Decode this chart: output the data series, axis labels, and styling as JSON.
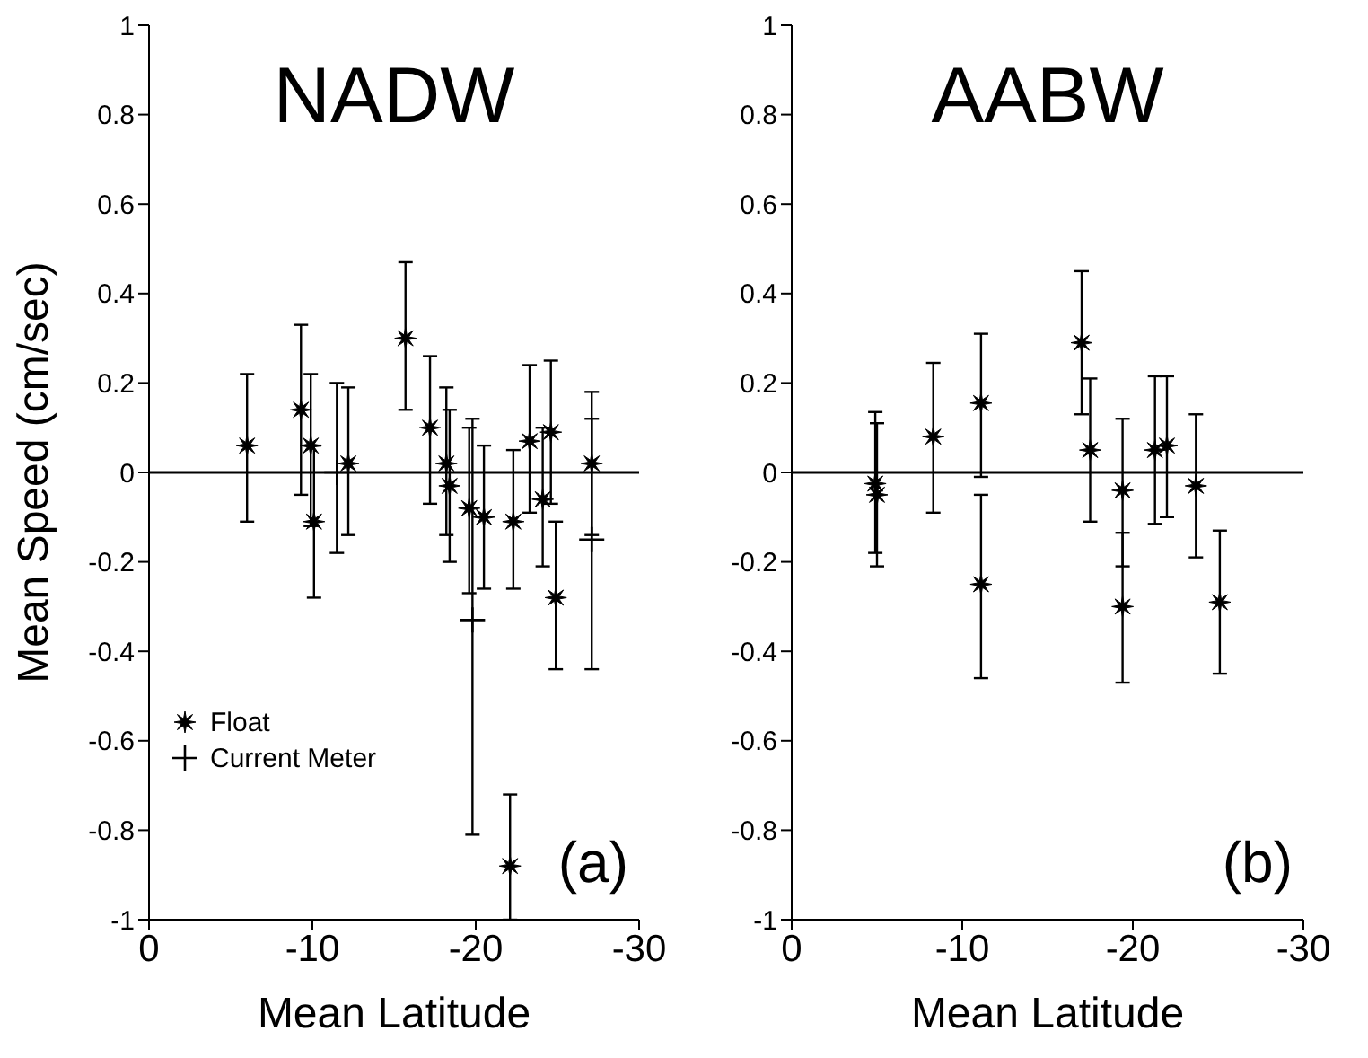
{
  "chart_data": [
    {
      "type": "scatter",
      "title": "NADW",
      "xlabel": "Mean Latitude",
      "ylabel": "Mean Speed (cm/sec)",
      "annotations": [
        "(a)"
      ],
      "xlim": [
        0,
        -30
      ],
      "xticks": [
        0,
        -10,
        -20,
        -30
      ],
      "ylim": [
        -1,
        1
      ],
      "yticks": [
        -1,
        -0.8,
        -0.6,
        -0.4,
        -0.2,
        0,
        0.2,
        0.4,
        0.6,
        0.8,
        1
      ],
      "ref_lines": [
        {
          "axis": "y",
          "value": 0
        }
      ],
      "legend": "bottom left",
      "grid": false,
      "series": [
        {
          "name": "Float",
          "color": "#000000",
          "marker": "star",
          "x": [
            -6,
            -9.3,
            -9.9,
            -10.1,
            -12.2,
            -15.7,
            -17.2,
            -18.2,
            -18.4,
            -19.6,
            -20.5,
            -22.3,
            -23.3,
            -24.1,
            -24.6,
            -24.9,
            -27.1,
            -22.1
          ],
          "values": [
            0.06,
            0.14,
            0.06,
            -0.11,
            0.02,
            0.3,
            0.1,
            0.02,
            -0.03,
            -0.08,
            -0.1,
            -0.11,
            0.07,
            -0.06,
            0.09,
            -0.28,
            0.02,
            -0.88
          ],
          "errors": [
            [
              -0.11,
              0.22
            ],
            [
              -0.05,
              0.33
            ],
            [
              -0.12,
              0.22
            ],
            [
              -0.28,
              0.06
            ],
            [
              -0.14,
              0.19
            ],
            [
              0.14,
              0.47
            ],
            [
              -0.07,
              0.26
            ],
            [
              -0.14,
              0.19
            ],
            [
              -0.2,
              0.14
            ],
            [
              -0.27,
              0.1
            ],
            [
              -0.26,
              0.06
            ],
            [
              -0.26,
              0.05
            ],
            [
              -0.09,
              0.24
            ],
            [
              -0.21,
              0.1
            ],
            [
              -0.07,
              0.25
            ],
            [
              -0.44,
              -0.11
            ],
            [
              -0.14,
              0.18
            ],
            [
              -1,
              -0.72
            ]
          ]
        },
        {
          "name": "Current Meter",
          "color": "#000000",
          "marker": "cross",
          "x": [
            -11.5,
            -19.8,
            -27.1
          ],
          "values": [
            0,
            -0.33,
            -0.15
          ],
          "errors": [
            [
              -0.18,
              0.2
            ],
            [
              -0.81,
              0.12
            ],
            [
              -0.44,
              0.12
            ]
          ]
        }
      ]
    },
    {
      "type": "scatter",
      "title": "AABW",
      "xlabel": "Mean Latitude",
      "annotations": [
        "(b)"
      ],
      "xlim": [
        0,
        -30
      ],
      "xticks": [
        0,
        -10,
        -20,
        -30
      ],
      "ylim": [
        -1,
        1
      ],
      "yticks": [
        -1,
        -0.8,
        -0.6,
        -0.4,
        -0.2,
        0,
        0.2,
        0.4,
        0.6,
        0.8,
        1
      ],
      "ref_lines": [
        {
          "axis": "y",
          "value": 0
        }
      ],
      "legend": false,
      "grid": false,
      "series": [
        {
          "color": "#000000",
          "marker": "star",
          "x": [
            -4.9,
            -5.0,
            -8.3,
            -11.1,
            -11.1,
            -17.0,
            -17.5,
            -19.4,
            -19.4,
            -21.3,
            -22.0,
            -23.7,
            -25.1
          ],
          "values": [
            -0.025,
            -0.05,
            0.08,
            0.155,
            -0.25,
            0.29,
            0.05,
            -0.04,
            -0.3,
            0.05,
            0.06,
            -0.03,
            -0.29
          ],
          "errors": [
            [
              -0.18,
              0.135
            ],
            [
              -0.21,
              0.11
            ],
            [
              -0.09,
              0.245
            ],
            [
              -0.01,
              0.31
            ],
            [
              -0.46,
              -0.05
            ],
            [
              0.13,
              0.45
            ],
            [
              -0.11,
              0.21
            ],
            [
              -0.21,
              0.12
            ],
            [
              -0.47,
              -0.135
            ],
            [
              -0.115,
              0.215
            ],
            [
              -0.1,
              0.215
            ],
            [
              -0.19,
              0.13
            ],
            [
              -0.45,
              -0.13
            ]
          ]
        }
      ]
    }
  ]
}
